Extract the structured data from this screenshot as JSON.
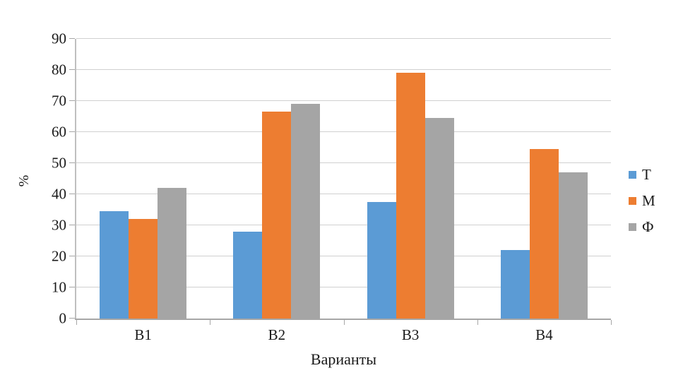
{
  "chart_data": {
    "type": "bar",
    "title": "",
    "categories": [
      "В1",
      "В2",
      "В3",
      "В4"
    ],
    "series": [
      {
        "name": "Т",
        "color": "#5B9BD5",
        "values": [
          34.5,
          28,
          37.5,
          22
        ]
      },
      {
        "name": "М",
        "color": "#ED7D31",
        "values": [
          32,
          66.5,
          79,
          54.5
        ]
      },
      {
        "name": "Ф",
        "color": "#A5A5A5",
        "values": [
          42,
          69,
          64.5,
          47
        ]
      }
    ],
    "xlabel": "Варианты",
    "ylabel": "%",
    "ylim": [
      0,
      90
    ],
    "yticks": [
      0,
      10,
      20,
      30,
      40,
      50,
      60,
      70,
      80,
      90
    ],
    "grid": true,
    "legend_position": "right"
  },
  "colors": {
    "gridline": "#d0d0d0",
    "axis": "#a6a6a6",
    "text": "#1a1a1a"
  }
}
